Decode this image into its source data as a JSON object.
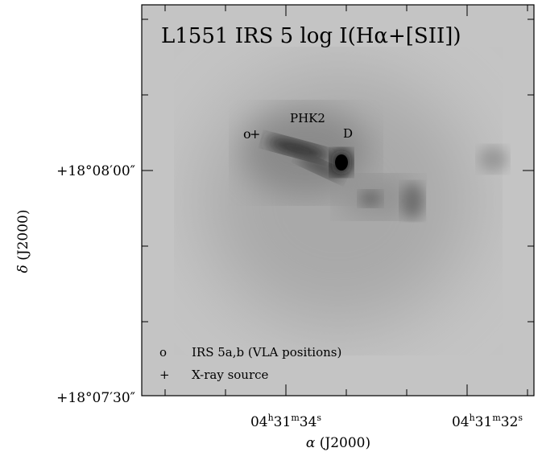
{
  "figure": {
    "title": "L1551 IRS 5 log I(Hα+[SII])",
    "annotations": {
      "knot": "PHK2",
      "source": "D",
      "marker_circle": "o",
      "marker_plus": "+"
    },
    "legend": [
      {
        "symbol": "o",
        "label": "IRS 5a,b (VLA positions)"
      },
      {
        "symbol": "+",
        "label": "X-ray source"
      }
    ],
    "y_axis": {
      "label_symbol": "δ",
      "label": "(J2000)",
      "ticks": [
        "+18°08′00″",
        "+18°07′30″"
      ]
    },
    "x_axis": {
      "label_symbol": "α",
      "label": "(J2000)",
      "ticks": [
        [
          "04",
          "h",
          "31",
          "m",
          "34",
          "s"
        ],
        [
          "04",
          "h",
          "31",
          "m",
          "32",
          "s"
        ]
      ]
    }
  }
}
